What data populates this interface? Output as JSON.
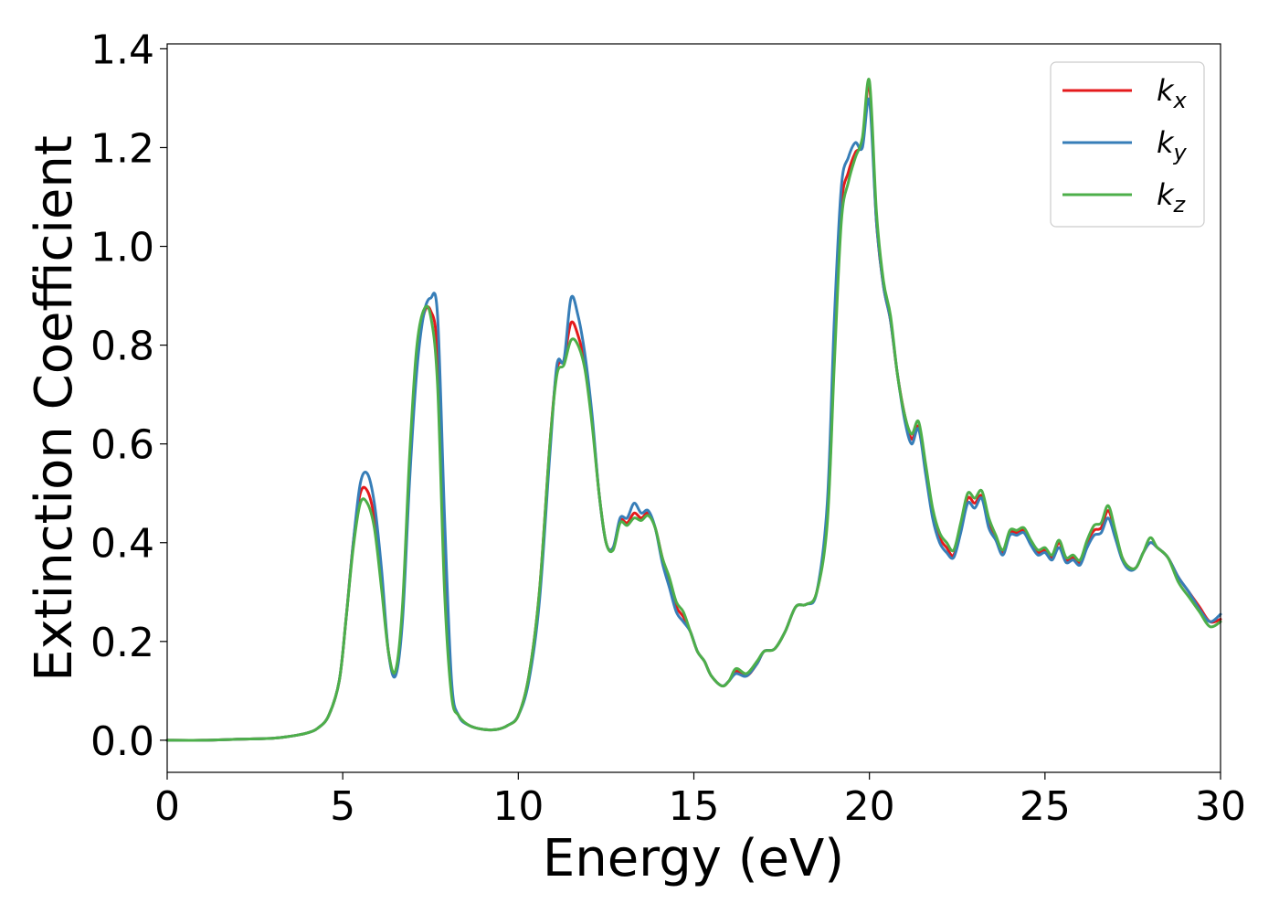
{
  "chart_data": {
    "type": "line",
    "xlabel": "Energy (eV)",
    "ylabel": "Extinction Coefficient",
    "xlim": [
      0,
      30
    ],
    "ylim": [
      -0.065,
      1.41
    ],
    "xticks": [
      0,
      5,
      10,
      15,
      20,
      25,
      30
    ],
    "yticks": [
      0.0,
      0.2,
      0.4,
      0.6,
      0.8,
      1.0,
      1.2,
      1.4
    ],
    "xtick_labels": [
      "0",
      "5",
      "10",
      "15",
      "20",
      "25",
      "30"
    ],
    "ytick_labels": [
      "0.0",
      "0.2",
      "0.4",
      "0.6",
      "0.8",
      "1.0",
      "1.2",
      "1.4"
    ],
    "grid": false,
    "legend_position": "top-right",
    "x": [
      0,
      1,
      2,
      3,
      3.5,
      4,
      4.3,
      4.6,
      4.9,
      5.1,
      5.3,
      5.5,
      5.7,
      5.9,
      6.1,
      6.3,
      6.5,
      6.7,
      6.9,
      7.1,
      7.3,
      7.5,
      7.7,
      7.9,
      8.1,
      8.3,
      8.6,
      9.0,
      9.4,
      9.7,
      10.0,
      10.3,
      10.6,
      10.9,
      11.1,
      11.3,
      11.5,
      11.7,
      11.9,
      12.1,
      12.3,
      12.5,
      12.7,
      12.9,
      13.1,
      13.3,
      13.5,
      13.7,
      13.9,
      14.1,
      14.3,
      14.5,
      14.7,
      14.9,
      15.1,
      15.3,
      15.5,
      15.8,
      16.0,
      16.2,
      16.5,
      16.8,
      17.0,
      17.3,
      17.6,
      17.9,
      18.2,
      18.5,
      18.8,
      19.0,
      19.2,
      19.4,
      19.6,
      19.8,
      20.0,
      20.2,
      20.4,
      20.6,
      20.8,
      21.0,
      21.2,
      21.4,
      21.6,
      21.8,
      22.0,
      22.2,
      22.4,
      22.6,
      22.8,
      23.0,
      23.2,
      23.4,
      23.6,
      23.8,
      24.0,
      24.2,
      24.4,
      24.6,
      24.8,
      25.0,
      25.2,
      25.4,
      25.6,
      25.8,
      26.0,
      26.2,
      26.4,
      26.6,
      26.8,
      27.0,
      27.2,
      27.4,
      27.6,
      27.8,
      28.0,
      28.2,
      28.5,
      28.8,
      29.1,
      29.4,
      29.7,
      30.0
    ],
    "series": [
      {
        "name": "k_x",
        "color": "#e41a1c",
        "values": [
          0.0,
          0.0,
          0.002,
          0.004,
          0.008,
          0.015,
          0.025,
          0.05,
          0.12,
          0.25,
          0.4,
          0.5,
          0.505,
          0.45,
          0.33,
          0.18,
          0.135,
          0.26,
          0.55,
          0.76,
          0.86,
          0.87,
          0.78,
          0.35,
          0.1,
          0.05,
          0.03,
          0.022,
          0.022,
          0.03,
          0.05,
          0.13,
          0.3,
          0.6,
          0.75,
          0.77,
          0.845,
          0.82,
          0.76,
          0.65,
          0.5,
          0.4,
          0.39,
          0.445,
          0.44,
          0.46,
          0.45,
          0.46,
          0.43,
          0.37,
          0.32,
          0.27,
          0.25,
          0.22,
          0.18,
          0.16,
          0.13,
          0.11,
          0.12,
          0.14,
          0.13,
          0.155,
          0.18,
          0.185,
          0.22,
          0.27,
          0.275,
          0.3,
          0.45,
          0.78,
          1.08,
          1.15,
          1.19,
          1.21,
          1.325,
          1.05,
          0.92,
          0.85,
          0.74,
          0.66,
          0.61,
          0.635,
          0.55,
          0.46,
          0.41,
          0.39,
          0.375,
          0.43,
          0.49,
          0.48,
          0.495,
          0.44,
          0.41,
          0.38,
          0.42,
          0.42,
          0.425,
          0.4,
          0.38,
          0.385,
          0.37,
          0.4,
          0.365,
          0.37,
          0.36,
          0.4,
          0.425,
          0.43,
          0.465,
          0.42,
          0.37,
          0.35,
          0.35,
          0.38,
          0.4,
          0.39,
          0.37,
          0.33,
          0.3,
          0.27,
          0.24,
          0.245
        ]
      },
      {
        "name": "k_y",
        "color": "#377eb8",
        "values": [
          0.0,
          0.0,
          0.002,
          0.004,
          0.008,
          0.015,
          0.025,
          0.05,
          0.12,
          0.25,
          0.4,
          0.52,
          0.54,
          0.48,
          0.35,
          0.18,
          0.13,
          0.24,
          0.52,
          0.74,
          0.86,
          0.895,
          0.86,
          0.45,
          0.12,
          0.05,
          0.03,
          0.022,
          0.022,
          0.03,
          0.05,
          0.12,
          0.28,
          0.58,
          0.76,
          0.77,
          0.895,
          0.86,
          0.78,
          0.66,
          0.5,
          0.4,
          0.39,
          0.45,
          0.45,
          0.48,
          0.46,
          0.465,
          0.43,
          0.36,
          0.31,
          0.26,
          0.24,
          0.22,
          0.18,
          0.16,
          0.13,
          0.11,
          0.12,
          0.135,
          0.13,
          0.155,
          0.18,
          0.185,
          0.22,
          0.27,
          0.275,
          0.3,
          0.48,
          0.85,
          1.12,
          1.18,
          1.21,
          1.2,
          1.295,
          1.05,
          0.92,
          0.85,
          0.74,
          0.65,
          0.6,
          0.63,
          0.54,
          0.45,
          0.4,
          0.38,
          0.37,
          0.42,
          0.48,
          0.47,
          0.49,
          0.43,
          0.405,
          0.375,
          0.415,
          0.415,
          0.42,
          0.395,
          0.375,
          0.38,
          0.365,
          0.39,
          0.36,
          0.365,
          0.355,
          0.39,
          0.415,
          0.42,
          0.45,
          0.41,
          0.365,
          0.345,
          0.35,
          0.38,
          0.4,
          0.39,
          0.37,
          0.33,
          0.3,
          0.265,
          0.24,
          0.255
        ]
      },
      {
        "name": "k_z",
        "color": "#4daf4a",
        "values": [
          0.0,
          0.0,
          0.002,
          0.004,
          0.008,
          0.015,
          0.025,
          0.05,
          0.12,
          0.25,
          0.39,
          0.48,
          0.48,
          0.43,
          0.31,
          0.18,
          0.14,
          0.27,
          0.57,
          0.79,
          0.87,
          0.86,
          0.72,
          0.3,
          0.09,
          0.05,
          0.03,
          0.022,
          0.022,
          0.03,
          0.05,
          0.13,
          0.3,
          0.6,
          0.74,
          0.76,
          0.81,
          0.8,
          0.75,
          0.64,
          0.5,
          0.4,
          0.385,
          0.44,
          0.435,
          0.45,
          0.445,
          0.455,
          0.43,
          0.37,
          0.33,
          0.28,
          0.26,
          0.22,
          0.18,
          0.16,
          0.13,
          0.11,
          0.12,
          0.145,
          0.135,
          0.16,
          0.18,
          0.185,
          0.22,
          0.27,
          0.275,
          0.3,
          0.44,
          0.76,
          1.05,
          1.13,
          1.18,
          1.22,
          1.335,
          1.07,
          0.93,
          0.86,
          0.74,
          0.66,
          0.62,
          0.645,
          0.56,
          0.47,
          0.42,
          0.4,
          0.385,
          0.44,
          0.5,
          0.49,
          0.505,
          0.45,
          0.415,
          0.385,
          0.425,
          0.425,
          0.43,
          0.405,
          0.385,
          0.39,
          0.375,
          0.405,
          0.37,
          0.375,
          0.365,
          0.405,
          0.435,
          0.44,
          0.475,
          0.425,
          0.37,
          0.35,
          0.35,
          0.38,
          0.41,
          0.39,
          0.37,
          0.32,
          0.29,
          0.26,
          0.23,
          0.24
        ]
      }
    ]
  },
  "legend": {
    "items": [
      {
        "base": "k",
        "sub": "x",
        "color": "#e41a1c"
      },
      {
        "base": "k",
        "sub": "y",
        "color": "#377eb8"
      },
      {
        "base": "k",
        "sub": "z",
        "color": "#4daf4a"
      }
    ]
  }
}
